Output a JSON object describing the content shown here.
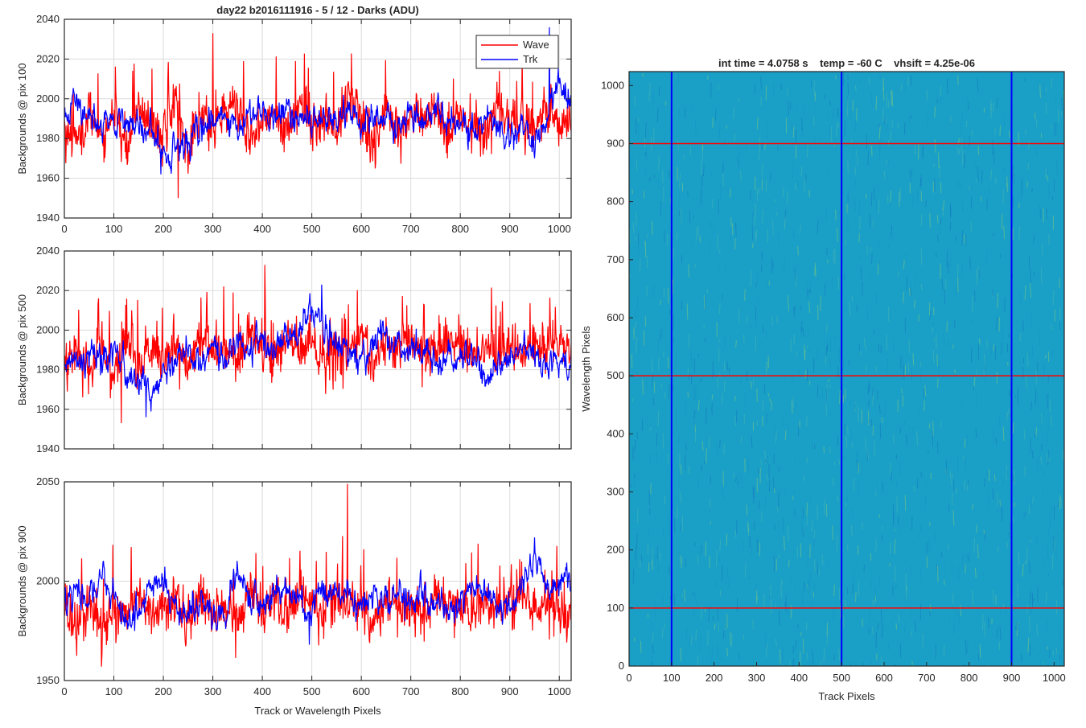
{
  "figure": {
    "title": "day22 b2016111916 - 5 / 12 - Darks (ADU)",
    "image_title": "int time = 4.0758 s    temp = -60 C    vhsift = 4.25e-06"
  },
  "chart_data": [
    {
      "type": "line",
      "title": "day22 b2016111916 - 5 / 12 - Darks (ADU)",
      "xlabel": "",
      "ylabel": "Backgrounds @ pix 100",
      "xlim": [
        0,
        1024
      ],
      "ylim": [
        1940,
        2040
      ],
      "xticks": [
        0,
        100,
        200,
        300,
        400,
        500,
        600,
        700,
        800,
        900,
        1000
      ],
      "xticklabels": [
        "0",
        "100",
        "200",
        "300",
        "400",
        "500",
        "600",
        "700",
        "800",
        "900",
        "1000"
      ],
      "yticks": [
        1940,
        1960,
        1980,
        2000,
        2020,
        2040
      ],
      "yticklabels": [
        "1940",
        "1960",
        "1980",
        "2000",
        "2020",
        "2040"
      ],
      "grid": true,
      "legend": {
        "placement": "top-right",
        "entries": [
          "Wave",
          "Trk"
        ]
      },
      "series": [
        {
          "name": "Wave",
          "color": "#ff0000",
          "x": [
            0,
            25,
            50,
            75,
            100,
            125,
            150,
            175,
            200,
            225,
            250,
            275,
            300,
            325,
            350,
            375,
            400,
            425,
            450,
            475,
            500,
            525,
            550,
            575,
            600,
            625,
            650,
            675,
            700,
            725,
            750,
            775,
            800,
            825,
            850,
            875,
            900,
            925,
            950,
            975,
            1000,
            1024
          ],
          "values": [
            1984,
            1978,
            1992,
            1983,
            1990,
            1976,
            1995,
            1986,
            1981,
            1998,
            1972,
            1993,
            1985,
            1990,
            2000,
            1979,
            1988,
            1994,
            1983,
            1997,
            1986,
            1992,
            1980,
            2003,
            1989,
            1977,
            1995,
            1984,
            1991,
            1986,
            1998,
            1981,
            1993,
            1987,
            1979,
            1996,
            1985,
            1990,
            1982,
            1995,
            1988,
            1984
          ],
          "notable": {
            "max": [
              300,
              2033
            ],
            "min": [
              230,
              1950
            ]
          }
        },
        {
          "name": "Trk",
          "color": "#0000ff",
          "x": [
            0,
            25,
            50,
            75,
            100,
            125,
            150,
            175,
            200,
            225,
            250,
            275,
            300,
            325,
            350,
            375,
            400,
            425,
            450,
            475,
            500,
            525,
            550,
            575,
            600,
            625,
            650,
            675,
            700,
            725,
            750,
            775,
            800,
            825,
            850,
            875,
            900,
            925,
            950,
            975,
            1000,
            1024
          ],
          "values": [
            1992,
            1998,
            1989,
            1986,
            1990,
            1988,
            1985,
            1983,
            1973,
            1976,
            1980,
            1985,
            1986,
            1991,
            1987,
            1990,
            1993,
            1988,
            1995,
            1989,
            1991,
            1990,
            1989,
            1993,
            1986,
            1992,
            1989,
            1987,
            1992,
            1990,
            1991,
            1986,
            1988,
            1985,
            1990,
            1984,
            1980,
            1985,
            1978,
            1988,
            2015,
            1995
          ],
          "notable": {
            "max": [
              980,
              2036
            ],
            "min": [
              195,
              1962
            ]
          }
        }
      ]
    },
    {
      "type": "line",
      "title": "",
      "xlabel": "",
      "ylabel": "Backgrounds @ pix 500",
      "xlim": [
        0,
        1024
      ],
      "ylim": [
        1940,
        2040
      ],
      "xticks": [
        0,
        100,
        200,
        300,
        400,
        500,
        600,
        700,
        800,
        900,
        1000
      ],
      "xticklabels": [
        "",
        "",
        "",
        "",
        "",
        "",
        "",
        "",
        "",
        "",
        ""
      ],
      "yticks": [
        1940,
        1960,
        1980,
        2000,
        2020,
        2040
      ],
      "yticklabels": [
        "1940",
        "1960",
        "1980",
        "2000",
        "2020",
        "2040"
      ],
      "grid": true,
      "series": [
        {
          "name": "Wave",
          "color": "#ff0000",
          "x": [
            0,
            25,
            50,
            75,
            100,
            125,
            150,
            175,
            200,
            225,
            250,
            275,
            300,
            325,
            350,
            375,
            400,
            425,
            450,
            475,
            500,
            525,
            550,
            575,
            600,
            625,
            650,
            675,
            700,
            725,
            750,
            775,
            800,
            825,
            850,
            875,
            900,
            925,
            950,
            975,
            1000,
            1024
          ],
          "values": [
            1983,
            1987,
            1980,
            1992,
            1978,
            1995,
            1984,
            1990,
            1986,
            1993,
            1981,
            1997,
            1989,
            1992,
            1985,
            1998,
            1990,
            1987,
            1995,
            1991,
            1996,
            1986,
            1993,
            1990,
            1998,
            1984,
            1992,
            1989,
            1996,
            1986,
            1993,
            1990,
            1997,
            1985,
            1992,
            1988,
            1995,
            1986,
            1993,
            1990,
            1994,
            1988
          ],
          "notable": {
            "max": [
              405,
              2033
            ],
            "min": [
              115,
              1953
            ]
          }
        },
        {
          "name": "Trk",
          "color": "#0000ff",
          "x": [
            0,
            25,
            50,
            75,
            100,
            125,
            150,
            175,
            200,
            225,
            250,
            275,
            300,
            325,
            350,
            375,
            400,
            425,
            450,
            475,
            500,
            525,
            550,
            575,
            600,
            625,
            650,
            675,
            700,
            725,
            750,
            775,
            800,
            825,
            850,
            875,
            900,
            925,
            950,
            975,
            1000,
            1024
          ],
          "values": [
            1982,
            1984,
            1986,
            1983,
            1988,
            1980,
            1975,
            1970,
            1978,
            1985,
            1987,
            1984,
            1989,
            1986,
            1992,
            1990,
            1995,
            1993,
            1997,
            2000,
            2012,
            2003,
            1993,
            1990,
            1988,
            1992,
            1995,
            1990,
            1986,
            1989,
            1985,
            1987,
            1984,
            1988,
            1975,
            1982,
            1985,
            1990,
            1988,
            1984,
            1986,
            1985
          ],
          "notable": {
            "max": [
              520,
              2023
            ],
            "min": [
              165,
              1956
            ]
          }
        }
      ]
    },
    {
      "type": "line",
      "title": "",
      "xlabel": "Track or Wavelength Pixels",
      "ylabel": "Backgrounds @ pix 900",
      "xlim": [
        0,
        1024
      ],
      "ylim": [
        1950,
        2050
      ],
      "xticks": [
        0,
        100,
        200,
        300,
        400,
        500,
        600,
        700,
        800,
        900,
        1000
      ],
      "xticklabels": [
        "0",
        "100",
        "200",
        "300",
        "400",
        "500",
        "600",
        "700",
        "800",
        "900",
        "1000"
      ],
      "yticks": [
        1950,
        2000,
        2050
      ],
      "yticklabels": [
        "1950",
        "2000",
        "2050"
      ],
      "grid": true,
      "series": [
        {
          "name": "Wave",
          "color": "#ff0000",
          "x": [
            0,
            25,
            50,
            75,
            100,
            125,
            150,
            175,
            200,
            225,
            250,
            275,
            300,
            325,
            350,
            375,
            400,
            425,
            450,
            475,
            500,
            525,
            550,
            575,
            600,
            625,
            650,
            675,
            700,
            725,
            750,
            775,
            800,
            825,
            850,
            875,
            900,
            925,
            950,
            975,
            1000,
            1024
          ],
          "values": [
            1985,
            1978,
            1990,
            1976,
            1988,
            1982,
            1993,
            1980,
            1986,
            1990,
            1978,
            1995,
            1983,
            1988,
            1980,
            1996,
            1985,
            1990,
            1982,
            1994,
            1987,
            1983,
            1992,
            1990,
            1986,
            1980,
            1993,
            1985,
            1989,
            1981,
            1994,
            1986,
            1990,
            1983,
            1992,
            1985,
            1988,
            1995,
            1983,
            1990,
            1986,
            1982
          ],
          "notable": {
            "max": [
              572,
              2049
            ],
            "min": [
              75,
              1957
            ]
          }
        },
        {
          "name": "Trk",
          "color": "#0000ff",
          "x": [
            0,
            25,
            50,
            75,
            100,
            125,
            150,
            175,
            200,
            225,
            250,
            275,
            300,
            325,
            350,
            375,
            400,
            425,
            450,
            475,
            500,
            525,
            550,
            575,
            600,
            625,
            650,
            675,
            700,
            725,
            750,
            775,
            800,
            825,
            850,
            875,
            900,
            925,
            950,
            975,
            1000,
            1024
          ],
          "values": [
            1990,
            1994,
            1988,
            2003,
            1992,
            1982,
            1986,
            1995,
            2000,
            1988,
            1984,
            1987,
            1985,
            1982,
            2008,
            1993,
            1988,
            1994,
            1996,
            1990,
            1987,
            1993,
            1996,
            1991,
            1988,
            1993,
            1990,
            1997,
            1988,
            1993,
            1990,
            1987,
            1991,
            1996,
            1994,
            1988,
            1990,
            1997,
            2015,
            1995,
            2000,
            2004
          ],
          "notable": {
            "max": [
              950,
              2022
            ],
            "min": [
              495,
              1968
            ]
          }
        }
      ]
    },
    {
      "type": "heatmap",
      "title": "int time = 4.0758 s    temp = -60 C    vhsift = 4.25e-06",
      "xlabel": "Track Pixels",
      "ylabel": "Wavelength Pixels",
      "xlim": [
        0,
        1024
      ],
      "ylim": [
        0,
        1024
      ],
      "xticks": [
        0,
        100,
        200,
        300,
        400,
        500,
        600,
        700,
        800,
        900,
        1000
      ],
      "xticklabels": [
        "0",
        "100",
        "200",
        "300",
        "400",
        "500",
        "600",
        "700",
        "800",
        "900",
        "1000"
      ],
      "yticks": [
        0,
        100,
        200,
        300,
        400,
        500,
        600,
        700,
        800,
        900,
        1000
      ],
      "yticklabels": [
        "0",
        "100",
        "200",
        "300",
        "400",
        "500",
        "600",
        "700",
        "800",
        "900",
        "1000"
      ],
      "colormap": "parula",
      "base_color": "#1aa0c6",
      "marker_lines": {
        "vertical": {
          "color": "#0000ff",
          "x": [
            100,
            500,
            900
          ]
        },
        "horizontal": {
          "color": "#ff0000",
          "y": [
            100,
            500,
            900
          ]
        }
      }
    }
  ]
}
